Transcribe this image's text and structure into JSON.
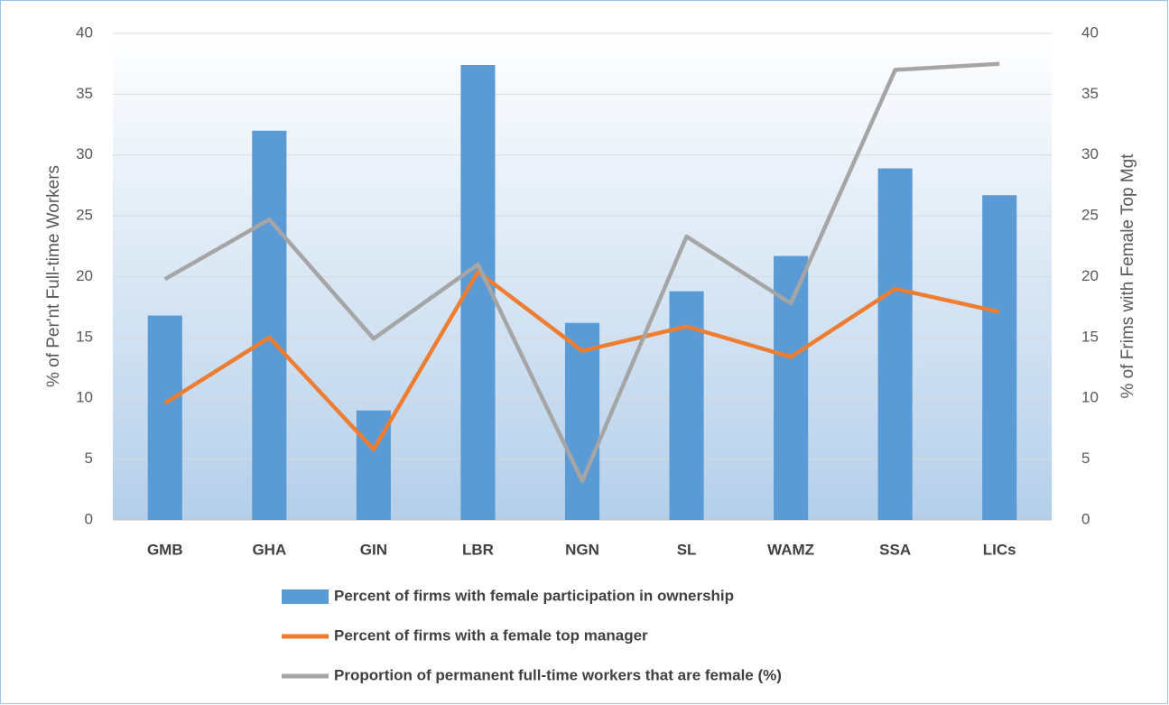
{
  "chart_data": {
    "type": "bar-line",
    "y_label": "% of Per'nt Full-time Workers",
    "y2_label": "% of Frims with Female Top Mgt",
    "categories": [
      "GMB",
      "GHA",
      "GIN",
      "LBR",
      "NGN",
      "SL",
      "WAMZ",
      "SSA",
      "LICs"
    ],
    "series": [
      {
        "name": "Percent of firms with female participation in ownership",
        "type": "bar",
        "color": "#5b9bd5",
        "axis": "y",
        "values": [
          16.8,
          32.0,
          9.0,
          37.4,
          16.2,
          18.8,
          21.7,
          28.9,
          26.7
        ]
      },
      {
        "name": "Percent of firms with a female top manager",
        "type": "line",
        "color": "#ed7d31",
        "axis": "y2",
        "values": [
          9.6,
          15.0,
          5.8,
          20.4,
          13.9,
          15.9,
          13.4,
          19.0,
          17.1
        ]
      },
      {
        "name": "Proportion of permanent full-time workers that are female (%)",
        "type": "line",
        "color": "#a5a5a5",
        "axis": "y",
        "values": [
          19.8,
          24.7,
          14.9,
          21.0,
          3.2,
          23.3,
          17.8,
          37.0,
          37.5
        ]
      }
    ],
    "ylim": [
      0,
      40
    ],
    "yticks": [
      0,
      5,
      10,
      15,
      20,
      25,
      30,
      35,
      40
    ],
    "y2lim": [
      0,
      40
    ],
    "y2ticks": [
      0,
      5,
      10,
      15,
      20,
      25,
      30,
      35,
      40
    ],
    "grid": true
  }
}
